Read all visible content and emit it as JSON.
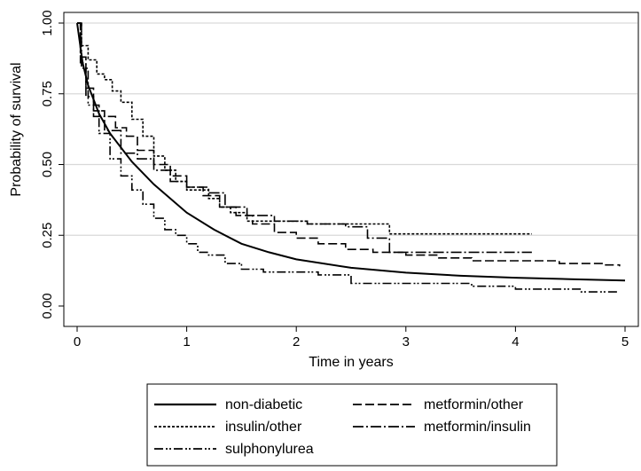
{
  "chart_data": {
    "type": "line",
    "step": true,
    "xlabel": "Time in years",
    "ylabel": "Probability of survival",
    "xlim": [
      0,
      5
    ],
    "ylim": [
      0,
      1
    ],
    "x_ticks": [
      0,
      1,
      2,
      3,
      4,
      5
    ],
    "y_ticks": [
      0,
      0.25,
      0.5,
      0.75,
      1
    ],
    "x_tick_labels": [
      "0",
      "1",
      "2",
      "3",
      "4",
      "5"
    ],
    "y_tick_labels": [
      "0.00",
      "0.25",
      "0.50",
      "0.75",
      "1.00"
    ],
    "grid": "horizontal",
    "legend_position": "bottom",
    "series": [
      {
        "name": "non-diabetic",
        "dash": "solid",
        "x": [
          0,
          0.05,
          0.1,
          0.2,
          0.3,
          0.5,
          0.7,
          1.0,
          1.25,
          1.5,
          1.75,
          2.0,
          2.5,
          3.0,
          3.5,
          4.0,
          4.5,
          5.0
        ],
        "y": [
          1.0,
          0.86,
          0.78,
          0.68,
          0.61,
          0.51,
          0.43,
          0.33,
          0.27,
          0.22,
          0.19,
          0.165,
          0.135,
          0.118,
          0.107,
          0.1,
          0.095,
          0.09
        ]
      },
      {
        "name": "metformin/other",
        "dash": "long-dash",
        "x": [
          0,
          0.03,
          0.08,
          0.15,
          0.25,
          0.35,
          0.45,
          0.55,
          0.7,
          0.85,
          1.0,
          1.15,
          1.3,
          1.45,
          1.6,
          1.8,
          2.0,
          2.2,
          2.45,
          2.7,
          3.0,
          3.3,
          3.6,
          4.0,
          4.4,
          4.8,
          4.95
        ],
        "y": [
          1.0,
          0.88,
          0.77,
          0.69,
          0.67,
          0.63,
          0.6,
          0.55,
          0.5,
          0.46,
          0.42,
          0.39,
          0.35,
          0.32,
          0.29,
          0.26,
          0.24,
          0.22,
          0.2,
          0.19,
          0.18,
          0.17,
          0.16,
          0.16,
          0.15,
          0.145,
          0.14
        ]
      },
      {
        "name": "insulin/other",
        "dash": "short-dash",
        "x": [
          0,
          0.04,
          0.1,
          0.18,
          0.25,
          0.32,
          0.4,
          0.5,
          0.6,
          0.7,
          0.8,
          0.9,
          1.0,
          1.1,
          1.2,
          1.3,
          1.4,
          1.55,
          1.8,
          2.1,
          2.5,
          2.85,
          4.15
        ],
        "y": [
          1.0,
          0.92,
          0.87,
          0.82,
          0.8,
          0.76,
          0.72,
          0.66,
          0.6,
          0.53,
          0.48,
          0.44,
          0.41,
          0.41,
          0.38,
          0.35,
          0.33,
          0.3,
          0.3,
          0.29,
          0.29,
          0.255,
          0.255
        ]
      },
      {
        "name": "metformin/insulin",
        "dash": "dash-dot",
        "x": [
          0,
          0.03,
          0.08,
          0.15,
          0.25,
          0.4,
          0.55,
          0.7,
          0.85,
          1.0,
          1.2,
          1.35,
          1.55,
          1.8,
          2.1,
          2.45,
          2.65,
          2.85,
          3.3,
          3.6,
          4.15
        ],
        "y": [
          1.0,
          0.86,
          0.74,
          0.67,
          0.62,
          0.54,
          0.52,
          0.48,
          0.44,
          0.42,
          0.4,
          0.35,
          0.32,
          0.3,
          0.29,
          0.28,
          0.24,
          0.19,
          0.19,
          0.19,
          0.19
        ]
      },
      {
        "name": "sulphonylurea",
        "dash": "dash-dot-dot",
        "x": [
          0,
          0.04,
          0.1,
          0.2,
          0.3,
          0.4,
          0.5,
          0.6,
          0.7,
          0.8,
          0.9,
          1.0,
          1.1,
          1.2,
          1.35,
          1.5,
          1.7,
          1.9,
          2.2,
          2.5,
          2.8,
          3.2,
          3.6,
          4.0,
          4.4,
          4.6,
          4.95
        ],
        "y": [
          1.0,
          0.84,
          0.71,
          0.61,
          0.52,
          0.46,
          0.41,
          0.36,
          0.31,
          0.27,
          0.25,
          0.22,
          0.19,
          0.18,
          0.15,
          0.13,
          0.12,
          0.12,
          0.11,
          0.08,
          0.08,
          0.08,
          0.07,
          0.06,
          0.06,
          0.05,
          0.05
        ]
      }
    ]
  }
}
